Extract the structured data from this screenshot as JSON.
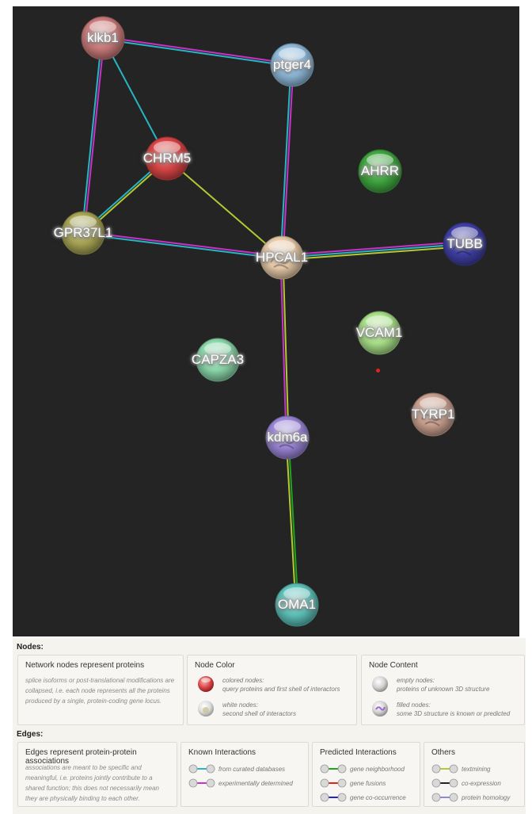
{
  "network": {
    "nodes": [
      {
        "id": "klkb1",
        "label": "klkb1",
        "color": "#c97a7a",
        "filled": false
      },
      {
        "id": "ptger4",
        "label": "ptger4",
        "color": "#8fb9d9",
        "filled": false
      },
      {
        "id": "CHRM5",
        "label": "CHRM5",
        "color": "#d84545",
        "filled": false
      },
      {
        "id": "AHRR",
        "label": "AHRR",
        "color": "#3fa53f",
        "filled": false
      },
      {
        "id": "GPR37L1",
        "label": "GPR37L1",
        "color": "#a7a455",
        "filled": false
      },
      {
        "id": "HPCAL1",
        "label": "HPCAL1",
        "color": "#e6c9a8",
        "filled": true
      },
      {
        "id": "TUBB",
        "label": "TUBB",
        "color": "#3f3fa3",
        "filled": true
      },
      {
        "id": "VCAM1",
        "label": "VCAM1",
        "color": "#a8df88",
        "filled": false
      },
      {
        "id": "CAPZA3",
        "label": "CAPZA3",
        "color": "#8ad6a9",
        "filled": false
      },
      {
        "id": "TYRP1",
        "label": "TYRP1",
        "color": "#caa08e",
        "filled": true
      },
      {
        "id": "kdm6a",
        "label": "kdm6a",
        "color": "#9a85d6",
        "filled": true
      },
      {
        "id": "OMA1",
        "label": "OMA1",
        "color": "#5cc0b8",
        "filled": false
      }
    ],
    "edges": [
      {
        "from": "klkb1",
        "to": "ptger4",
        "types": [
          "experimentally determined",
          "from curated databases"
        ]
      },
      {
        "from": "klkb1",
        "to": "GPR37L1",
        "types": [
          "experimentally determined",
          "from curated databases"
        ]
      },
      {
        "from": "klkb1",
        "to": "CHRM5",
        "types": [
          "from curated databases"
        ]
      },
      {
        "from": "ptger4",
        "to": "HPCAL1",
        "types": [
          "experimentally determined",
          "from curated databases"
        ]
      },
      {
        "from": "CHRM5",
        "to": "GPR37L1",
        "types": [
          "textmining",
          "from curated databases"
        ]
      },
      {
        "from": "CHRM5",
        "to": "HPCAL1",
        "types": [
          "textmining"
        ]
      },
      {
        "from": "GPR37L1",
        "to": "HPCAL1",
        "types": [
          "experimentally determined",
          "from curated databases"
        ]
      },
      {
        "from": "HPCAL1",
        "to": "TUBB",
        "types": [
          "experimentally determined",
          "from curated databases",
          "textmining"
        ]
      },
      {
        "from": "HPCAL1",
        "to": "kdm6a",
        "types": [
          "textmining",
          "experimentally determined"
        ]
      },
      {
        "from": "kdm6a",
        "to": "OMA1",
        "types": [
          "gene neighborhood",
          "textmining"
        ]
      }
    ],
    "edge_colors": {
      "from curated databases": "#27b5c4",
      "experimentally determined": "#c832c8",
      "gene neighborhood": "#1ea51e",
      "gene fusions": "#e0241c",
      "gene co-occurrence": "#2323c8",
      "textmining": "#b5c832",
      "co-expression": "#222222",
      "protein homology": "#8a8ad9"
    }
  },
  "legend": {
    "nodes_title": "Nodes:",
    "edges_title": "Edges:",
    "node_boxes": [
      {
        "title": "Network nodes represent proteins",
        "desc": "splice isoforms or post-translational modifications are collapsed, i.e. each node represents all the proteins produced by a single, protein-coding gene locus."
      },
      {
        "title": "Node Color",
        "items": [
          {
            "line1": "colored nodes:",
            "line2": "query proteins and first shell of interactors"
          },
          {
            "line1": "white nodes:",
            "line2": "second shell of interactors"
          }
        ]
      },
      {
        "title": "Node Content",
        "items": [
          {
            "line1": "empty nodes:",
            "line2": "proteins of unknown 3D structure"
          },
          {
            "line1": "filled nodes:",
            "line2": "some 3D structure is known or predicted"
          }
        ]
      }
    ],
    "edge_boxes": [
      {
        "title": "Edges represent protein-protein associations",
        "desc": "associations are meant to be specific and meaningful, i.e. proteins jointly contribute to a shared function; this does not necessarily mean they are physically binding to each other."
      },
      {
        "title": "Known Interactions",
        "items": [
          {
            "label": "from curated databases",
            "color": "#27b5c4"
          },
          {
            "label": "experimentally determined",
            "color": "#c832c8"
          }
        ]
      },
      {
        "title": "Predicted Interactions",
        "items": [
          {
            "label": "gene neighborhood",
            "color": "#1ea51e"
          },
          {
            "label": "gene fusions",
            "color": "#e0241c"
          },
          {
            "label": "gene co-occurrence",
            "color": "#2323c8"
          }
        ]
      },
      {
        "title": "Others",
        "items": [
          {
            "label": "textmining",
            "color": "#b5c832"
          },
          {
            "label": "co-expression",
            "color": "#222222"
          },
          {
            "label": "protein homology",
            "color": "#8a8ad9"
          }
        ]
      }
    ]
  }
}
